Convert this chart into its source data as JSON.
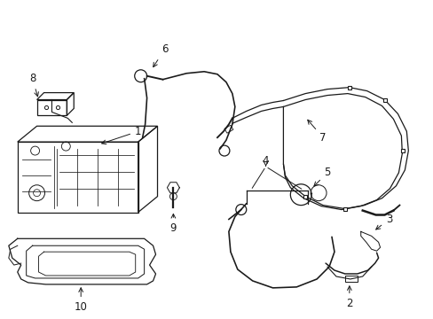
{
  "background": "#ffffff",
  "line_color": "#1a1a1a",
  "lw": 0.9,
  "fig_width": 4.89,
  "fig_height": 3.6,
  "dpi": 100
}
